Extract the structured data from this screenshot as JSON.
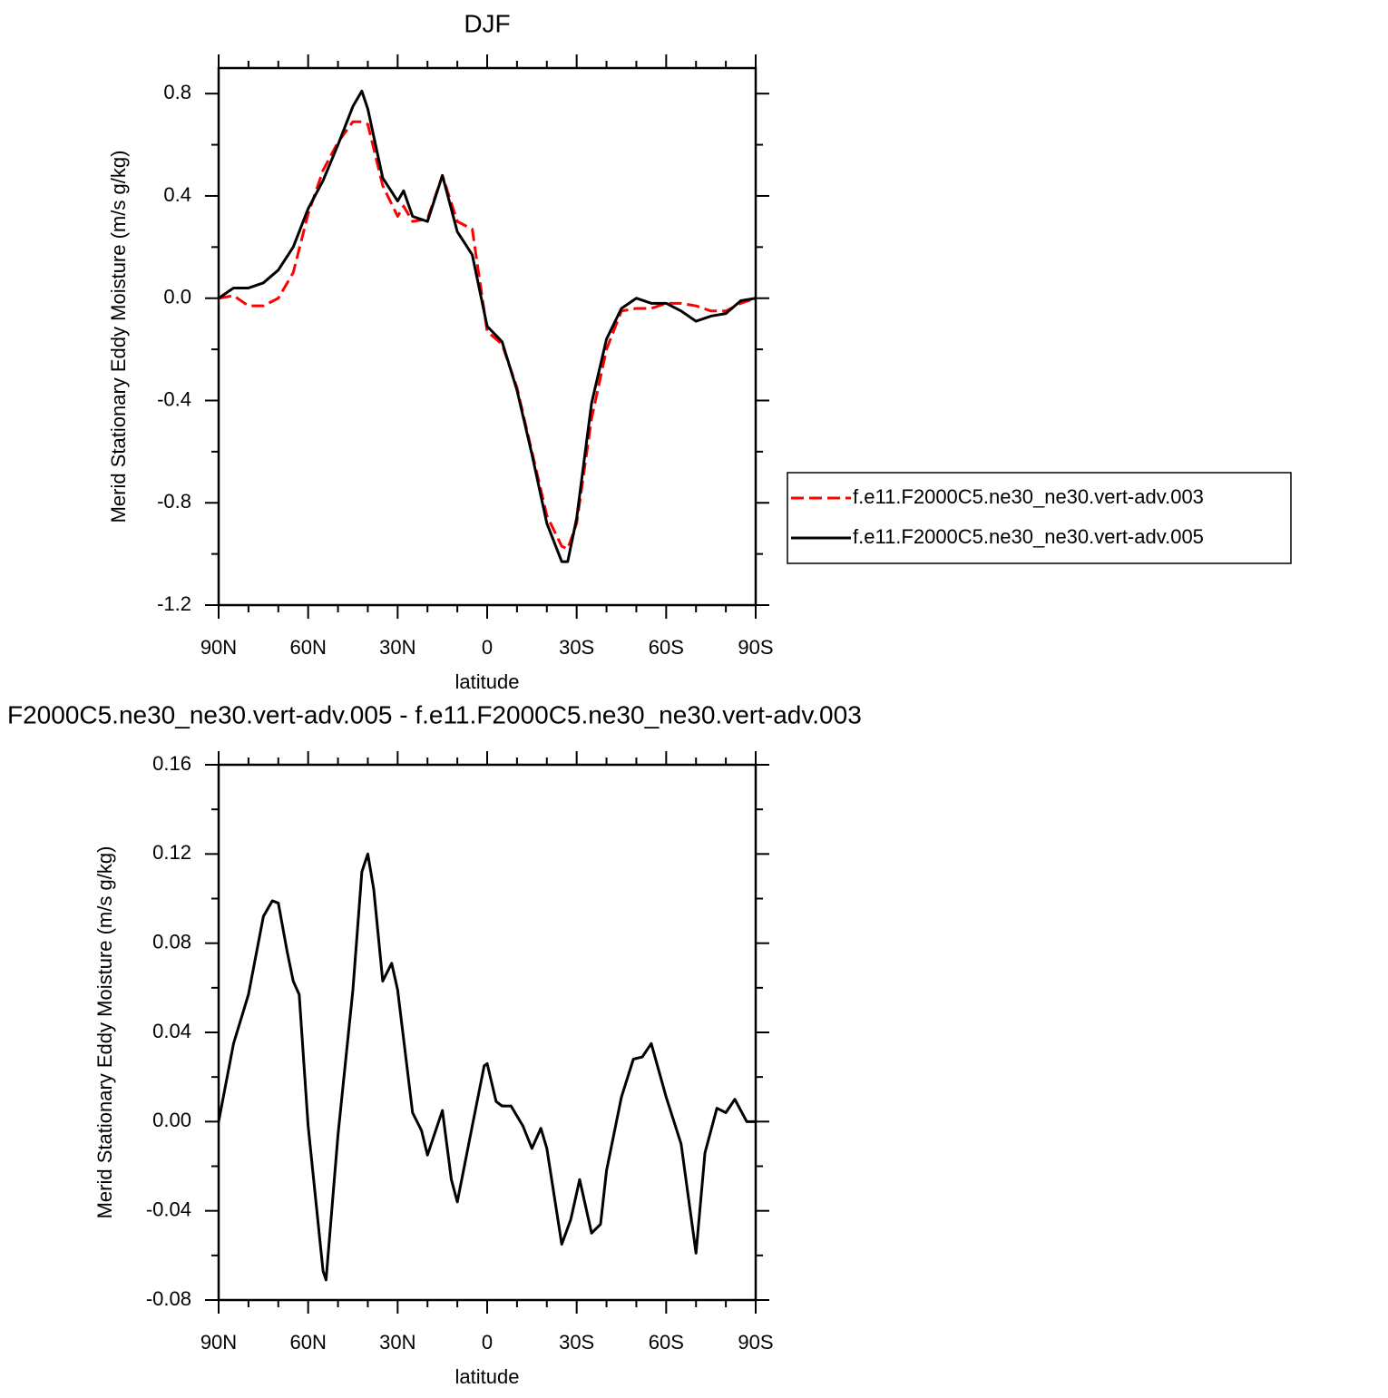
{
  "chart_data": [
    {
      "type": "line",
      "title": "DJF",
      "xlabel": "latitude",
      "ylabel": "Merid Stationary Eddy Moisture (m/s g/kg)",
      "x": [
        90,
        85,
        80,
        75,
        70,
        65,
        60,
        55,
        50,
        45,
        42,
        40,
        35,
        30,
        28,
        25,
        20,
        15,
        10,
        5,
        0,
        -5,
        -10,
        -15,
        -20,
        -25,
        -27,
        -30,
        -35,
        -40,
        -45,
        -50,
        -55,
        -60,
        -65,
        -70,
        -75,
        -80,
        -85,
        -90
      ],
      "series": [
        {
          "name": "f.e11.F2000C5.ne30_ne30.vert-adv.003",
          "color": "#ff0000",
          "dash": true,
          "values": [
            0,
            0.01,
            -0.03,
            -0.03,
            0,
            0.1,
            0.33,
            0.5,
            0.61,
            0.69,
            0.69,
            0.68,
            0.44,
            0.32,
            0.36,
            0.3,
            0.31,
            0.48,
            0.3,
            0.27,
            -0.13,
            -0.18,
            -0.35,
            -0.6,
            -0.85,
            -0.97,
            -0.98,
            -0.88,
            -0.47,
            -0.2,
            -0.05,
            -0.04,
            -0.04,
            -0.02,
            -0.02,
            -0.03,
            -0.05,
            -0.05,
            -0.02,
            0
          ]
        },
        {
          "name": "f.e11.F2000C5.ne30_ne30.vert-adv.005",
          "color": "#000000",
          "dash": false,
          "values": [
            0,
            0.04,
            0.04,
            0.06,
            0.11,
            0.2,
            0.35,
            0.46,
            0.6,
            0.75,
            0.81,
            0.74,
            0.47,
            0.38,
            0.42,
            0.32,
            0.3,
            0.48,
            0.26,
            0.17,
            -0.11,
            -0.17,
            -0.36,
            -0.61,
            -0.88,
            -1.03,
            -1.03,
            -0.86,
            -0.41,
            -0.16,
            -0.04,
            0,
            -0.02,
            -0.02,
            -0.05,
            -0.09,
            -0.07,
            -0.06,
            -0.01,
            0
          ]
        }
      ],
      "xlim": [
        90,
        -90
      ],
      "xticks": [
        {
          "value": 90,
          "label": "90N"
        },
        {
          "value": 60,
          "label": "60N"
        },
        {
          "value": 30,
          "label": "30N"
        },
        0,
        {
          "value": -30,
          "label": "30S"
        },
        {
          "value": -60,
          "label": "60S"
        },
        {
          "value": -90,
          "label": "90S"
        }
      ],
      "xminorticks": [
        80,
        70,
        50,
        40,
        20,
        10,
        -10,
        -20,
        -40,
        -50,
        -70,
        -80
      ],
      "ylim": [
        -1.2,
        0.9
      ],
      "yticks": [
        -1.2,
        -0.8,
        -0.4,
        {
          "value": 0,
          "label": "0.0"
        },
        0.4,
        0.8
      ],
      "yminorticks": [
        -1.0,
        -0.6,
        -0.2,
        0.2,
        0.6
      ],
      "legend": "right"
    },
    {
      "type": "line",
      "title": "F2000C5.ne30_ne30.vert-adv.005 - f.e11.F2000C5.ne30_ne30.vert-adv.003",
      "xlabel": "latitude",
      "ylabel": "Merid Stationary Eddy Moisture (m/s g/kg)",
      "x": [
        90,
        85,
        80,
        75,
        72,
        70,
        67,
        65,
        63,
        60,
        55,
        54,
        50,
        45,
        42,
        40,
        38,
        35,
        32,
        30,
        25,
        22,
        20,
        15,
        12,
        10,
        5,
        1,
        0,
        -3,
        -5,
        -8,
        -12,
        -15,
        -18,
        -20,
        -25,
        -28,
        -31,
        -35,
        -38,
        -40,
        -45,
        -49,
        -52,
        -55,
        -60,
        -65,
        -70,
        -73,
        -77,
        -80,
        -83,
        -87,
        -90
      ],
      "series": [
        {
          "color": "#000000",
          "dash": false,
          "values": [
            0,
            0.035,
            0.057,
            0.092,
            0.099,
            0.098,
            0.076,
            0.063,
            0.057,
            -0.002,
            -0.067,
            -0.071,
            -0.006,
            0.059,
            0.112,
            0.12,
            0.104,
            0.063,
            0.071,
            0.059,
            0.004,
            -0.004,
            -0.015,
            0.005,
            -0.026,
            -0.036,
            -0.002,
            0.025,
            0.026,
            0.009,
            0.007,
            0.007,
            -0.002,
            -0.012,
            -0.003,
            -0.012,
            -0.055,
            -0.044,
            -0.026,
            -0.05,
            -0.046,
            -0.022,
            0.011,
            0.028,
            0.029,
            0.035,
            0.011,
            -0.01,
            -0.059,
            -0.014,
            0.006,
            0.004,
            0.01,
            0,
            0
          ]
        }
      ],
      "xlim": [
        90,
        -90
      ],
      "xticks": [
        {
          "value": 90,
          "label": "90N"
        },
        {
          "value": 60,
          "label": "60N"
        },
        {
          "value": 30,
          "label": "30N"
        },
        0,
        {
          "value": -30,
          "label": "30S"
        },
        {
          "value": -60,
          "label": "60S"
        },
        {
          "value": -90,
          "label": "90S"
        }
      ],
      "xminorticks": [
        80,
        70,
        50,
        40,
        20,
        10,
        -10,
        -20,
        -40,
        -50,
        -70,
        -80
      ],
      "ylim": [
        -0.08,
        0.16
      ],
      "yticks": [
        -0.08,
        -0.04,
        {
          "value": 0,
          "label": "0.00"
        },
        0.04,
        0.08,
        0.12,
        0.16
      ],
      "yminorticks": [
        -0.06,
        -0.02,
        0.02,
        0.06,
        0.1,
        0.14
      ]
    }
  ]
}
